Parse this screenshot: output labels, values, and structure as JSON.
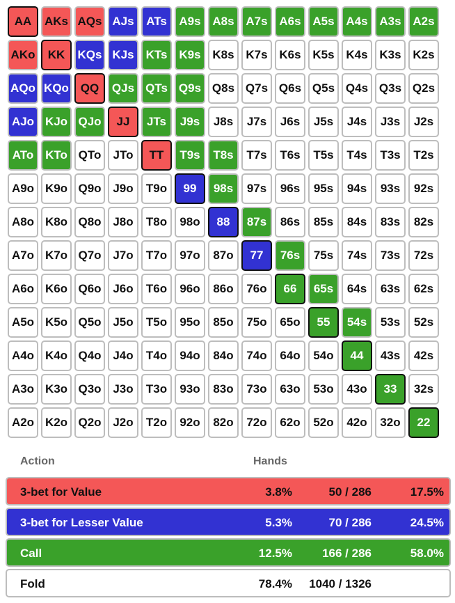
{
  "colors": {
    "value": "#f45757",
    "lesser_value": "#3232d2",
    "call": "#3aa12a",
    "fold": "#ffffff"
  },
  "grid": [
    [
      "AA",
      "AKs",
      "AQs",
      "AJs",
      "ATs",
      "A9s",
      "A8s",
      "A7s",
      "A6s",
      "A5s",
      "A4s",
      "A3s",
      "A2s"
    ],
    [
      "AKo",
      "KK",
      "KQs",
      "KJs",
      "KTs",
      "K9s",
      "K8s",
      "K7s",
      "K6s",
      "K5s",
      "K4s",
      "K3s",
      "K2s"
    ],
    [
      "AQo",
      "KQo",
      "QQ",
      "QJs",
      "QTs",
      "Q9s",
      "Q8s",
      "Q7s",
      "Q6s",
      "Q5s",
      "Q4s",
      "Q3s",
      "Q2s"
    ],
    [
      "AJo",
      "KJo",
      "QJo",
      "JJ",
      "JTs",
      "J9s",
      "J8s",
      "J7s",
      "J6s",
      "J5s",
      "J4s",
      "J3s",
      "J2s"
    ],
    [
      "ATo",
      "KTo",
      "QTo",
      "JTo",
      "TT",
      "T9s",
      "T8s",
      "T7s",
      "T6s",
      "T5s",
      "T4s",
      "T3s",
      "T2s"
    ],
    [
      "A9o",
      "K9o",
      "Q9o",
      "J9o",
      "T9o",
      "99",
      "98s",
      "97s",
      "96s",
      "95s",
      "94s",
      "93s",
      "92s"
    ],
    [
      "A8o",
      "K8o",
      "Q8o",
      "J8o",
      "T8o",
      "98o",
      "88",
      "87s",
      "86s",
      "85s",
      "84s",
      "83s",
      "82s"
    ],
    [
      "A7o",
      "K7o",
      "Q7o",
      "J7o",
      "T7o",
      "97o",
      "87o",
      "77",
      "76s",
      "75s",
      "74s",
      "73s",
      "72s"
    ],
    [
      "A6o",
      "K6o",
      "Q6o",
      "J6o",
      "T6o",
      "96o",
      "86o",
      "76o",
      "66",
      "65s",
      "64s",
      "63s",
      "62s"
    ],
    [
      "A5o",
      "K5o",
      "Q5o",
      "J5o",
      "T5o",
      "95o",
      "85o",
      "75o",
      "65o",
      "55",
      "54s",
      "53s",
      "52s"
    ],
    [
      "A4o",
      "K4o",
      "Q4o",
      "J4o",
      "T4o",
      "94o",
      "84o",
      "74o",
      "64o",
      "54o",
      "44",
      "43s",
      "42s"
    ],
    [
      "A3o",
      "K3o",
      "Q3o",
      "J3o",
      "T3o",
      "93o",
      "83o",
      "73o",
      "63o",
      "53o",
      "43o",
      "33",
      "32s"
    ],
    [
      "A2o",
      "K2o",
      "Q2o",
      "J2o",
      "T2o",
      "92o",
      "82o",
      "72o",
      "62o",
      "52o",
      "42o",
      "32o",
      "22"
    ]
  ],
  "actions": {
    "value": [
      "AA",
      "AKs",
      "AQs",
      "AKo",
      "KK",
      "QQ",
      "JJ",
      "TT"
    ],
    "lesser_value": [
      "AJs",
      "ATs",
      "KQs",
      "KJs",
      "AQo",
      "KQo",
      "AJo",
      "99",
      "88",
      "77"
    ],
    "call": [
      "A9s",
      "A8s",
      "A7s",
      "A6s",
      "A5s",
      "A4s",
      "A3s",
      "A2s",
      "KTs",
      "K9s",
      "QJs",
      "QTs",
      "Q9s",
      "KJo",
      "QJo",
      "JTs",
      "J9s",
      "ATo",
      "KTo",
      "T9s",
      "T8s",
      "98s",
      "87s",
      "76s",
      "66",
      "65s",
      "55",
      "54s",
      "44",
      "33",
      "22"
    ]
  },
  "legend": {
    "header_action": "Action",
    "header_hands": "Hands",
    "rows": {
      "value": {
        "label": "3-bet for Value",
        "pct": "3.8%",
        "combos": "50 / 286",
        "share": "17.5%"
      },
      "lesser": {
        "label": "3-bet for Lesser Value",
        "pct": "5.3%",
        "combos": "70 / 286",
        "share": "24.5%"
      },
      "call": {
        "label": "Call",
        "pct": "12.5%",
        "combos": "166 / 286",
        "share": "58.0%"
      },
      "fold": {
        "label": "Fold",
        "pct": "78.4%",
        "combos": "1040 / 1326",
        "share": ""
      }
    }
  }
}
